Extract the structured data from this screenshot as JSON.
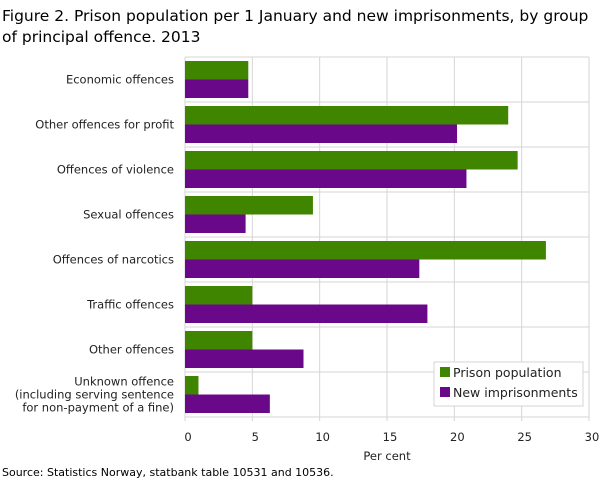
{
  "chart_data": {
    "type": "bar",
    "orientation": "horizontal",
    "title": "Figure 2. Prison population per 1 January and new imprisonments, by group of principal offence. 2013",
    "xlabel": "Per cent",
    "ylabel": "",
    "xlim": [
      0,
      30
    ],
    "xticks": [
      0,
      5,
      10,
      15,
      20,
      25,
      30
    ],
    "grid": true,
    "legend_position": "bottom-right",
    "categories": [
      [
        "Economic offences"
      ],
      [
        "Other offences for profit"
      ],
      [
        "Offences of violence"
      ],
      [
        "Sexual offences"
      ],
      [
        "Offences of narcotics"
      ],
      [
        "Traffic offences"
      ],
      [
        "Other offences"
      ],
      [
        "Unknown offence",
        "(including serving sentence",
        "for non-payment  of a fine)"
      ]
    ],
    "series": [
      {
        "name": "Prison population",
        "color": "#3f8500",
        "values": [
          4.7,
          24.0,
          24.7,
          9.5,
          26.8,
          5.0,
          5.0,
          1.0
        ]
      },
      {
        "name": "New imprisonments",
        "color": "#690888",
        "values": [
          4.7,
          20.2,
          20.9,
          4.5,
          17.4,
          18.0,
          8.8,
          6.3
        ]
      }
    ],
    "source": "Source: Statistics Norway, statbank table 10531 and 10536."
  }
}
